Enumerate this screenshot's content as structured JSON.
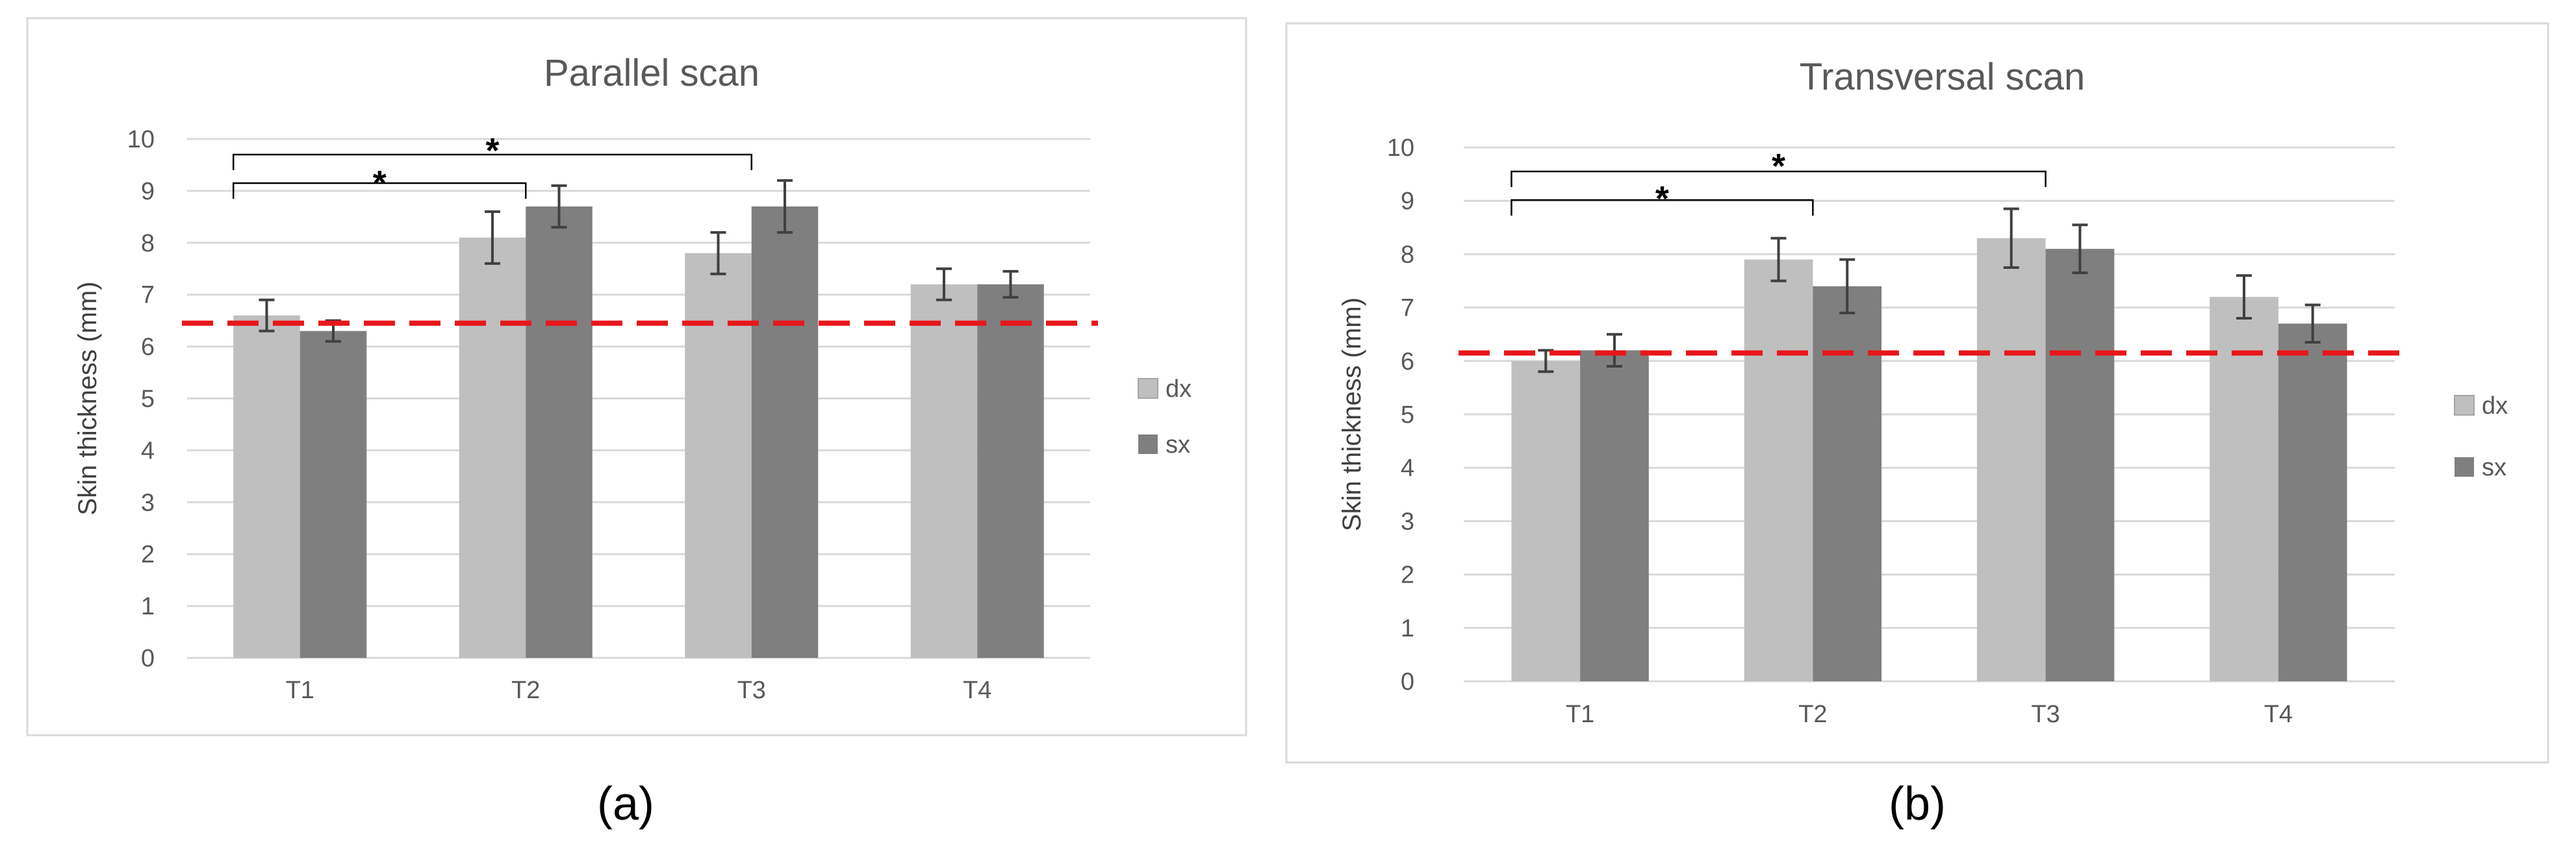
{
  "colors": {
    "dx": "#bfbfbf",
    "sx": "#7f7f7f",
    "reference_line": "#e8161b",
    "error_bar": "#404040",
    "panel_border": "#d9d9d9",
    "gridline": "#d9d9d9",
    "text": "#595959"
  },
  "chart_data": [
    {
      "type": "bar",
      "panel_label": "(a)",
      "title": "Parallel scan",
      "ylabel": "Skin thickness (mm)",
      "xlabel": "",
      "categories": [
        "T1",
        "T2",
        "T3",
        "T4"
      ],
      "ylim": [
        0,
        10
      ],
      "yticks": [
        0,
        1,
        2,
        3,
        4,
        5,
        6,
        7,
        8,
        9,
        10
      ],
      "grid": true,
      "legend": "right",
      "series": [
        {
          "name": "dx",
          "values": [
            6.6,
            8.1,
            7.8,
            7.2
          ],
          "errors": [
            0.3,
            0.5,
            0.4,
            0.3
          ]
        },
        {
          "name": "sx",
          "values": [
            6.3,
            8.7,
            8.7,
            7.2
          ],
          "errors": [
            0.2,
            0.4,
            0.5,
            0.25
          ]
        }
      ],
      "reference_line": {
        "y": 6.45,
        "style": "dashed"
      },
      "significance": [
        {
          "from": "T1",
          "to": "T2",
          "label": "*"
        },
        {
          "from": "T1",
          "to": "T3",
          "label": "*"
        }
      ]
    },
    {
      "type": "bar",
      "panel_label": "(b)",
      "title": "Transversal scan",
      "ylabel": "Skin thickness (mm)",
      "xlabel": "",
      "categories": [
        "T1",
        "T2",
        "T3",
        "T4"
      ],
      "ylim": [
        0,
        10
      ],
      "yticks": [
        0,
        1,
        2,
        3,
        4,
        5,
        6,
        7,
        8,
        9,
        10
      ],
      "grid": true,
      "legend": "right",
      "series": [
        {
          "name": "dx",
          "values": [
            6.0,
            7.9,
            8.3,
            7.2
          ],
          "errors": [
            0.2,
            0.4,
            0.55,
            0.4
          ]
        },
        {
          "name": "sx",
          "values": [
            6.2,
            7.4,
            8.1,
            6.7
          ],
          "errors": [
            0.3,
            0.5,
            0.45,
            0.35
          ]
        }
      ],
      "reference_line": {
        "y": 6.15,
        "style": "dashed"
      },
      "significance": [
        {
          "from": "T1",
          "to": "T2",
          "label": "*"
        },
        {
          "from": "T1",
          "to": "T3",
          "label": "*"
        }
      ]
    }
  ]
}
